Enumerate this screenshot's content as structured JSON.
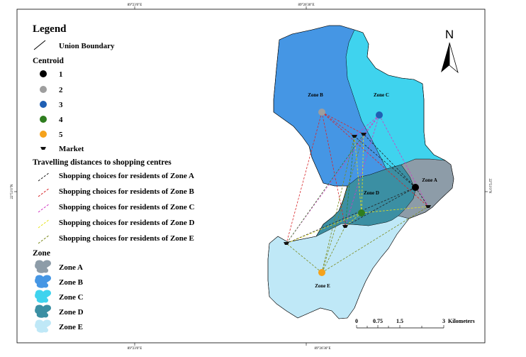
{
  "coordinates": {
    "top_left": "89°23'0\"E",
    "top_right": "89°26'30\"E",
    "bottom_left": "89°23'0\"E",
    "bottom_right": "89°26'30\"E",
    "left_side": "22°51'0\"N",
    "right_side": "22°51'0\"N"
  },
  "legend": {
    "title": "Legend",
    "union_boundary": "Union Boundary",
    "centroid_title": "Centroid",
    "centroids": [
      {
        "label": "1",
        "color": "#000000"
      },
      {
        "label": "2",
        "color": "#9e9e9e"
      },
      {
        "label": "3",
        "color": "#1f5fb4"
      },
      {
        "label": "4",
        "color": "#2f7d1f"
      },
      {
        "label": "5",
        "color": "#f5a21b"
      }
    ],
    "market": "Market",
    "travel_title": "Travelling distances to shopping centres",
    "travel": [
      {
        "label": "Shopping choices for residents of Zone A",
        "color": "#222222"
      },
      {
        "label": "Shopping choices for residents of Zone B",
        "color": "#d8262a"
      },
      {
        "label": "Shopping choices for residents of Zone C",
        "color": "#d23bc3"
      },
      {
        "label": "Shopping choices for residents of Zone D",
        "color": "#e7e21c"
      },
      {
        "label": "Shopping choices for residents of Zone E",
        "color": "#7c8a1e"
      }
    ],
    "zone_title": "Zone",
    "zones": [
      {
        "label": "Zone A",
        "color": "#8d9ca8"
      },
      {
        "label": "Zone B",
        "color": "#4596e4"
      },
      {
        "label": "Zone C",
        "color": "#3fd3ee"
      },
      {
        "label": "Zone D",
        "color": "#3b8fa3"
      },
      {
        "label": "Zone E",
        "color": "#bfe8f7"
      }
    ]
  },
  "map": {
    "zone_labels": [
      "Zone B",
      "Zone C",
      "Zone A",
      "Zone D",
      "Zone E"
    ],
    "north": "N"
  },
  "scale_bar": {
    "ticks": [
      "0",
      "0.75",
      "1.5",
      "3"
    ],
    "unit": "Kilometers"
  }
}
